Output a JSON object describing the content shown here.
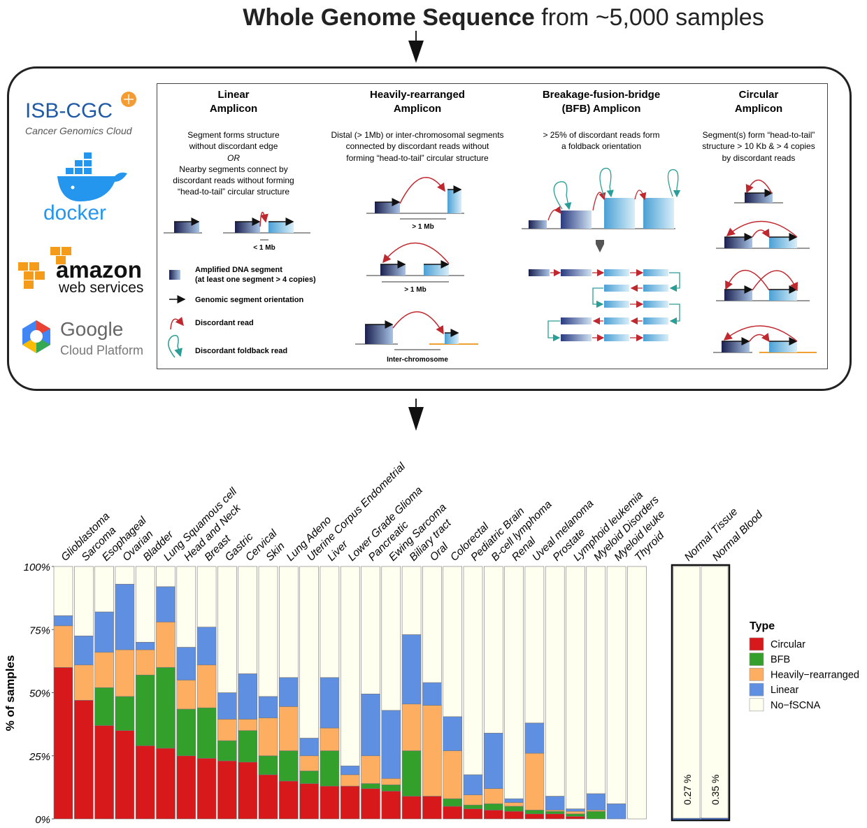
{
  "header": {
    "title_bold": "Whole Genome Sequence",
    "title_rest": " from ~5,000 samples"
  },
  "logos": {
    "isb_title": "ISB-CGC",
    "isb_subtitle": "Cancer Genomics Cloud",
    "docker": "docker",
    "amazon": "amazon",
    "aws": "web services",
    "google": "Google",
    "gcp": "Cloud Platform"
  },
  "colors": {
    "circular": "#d7191c",
    "bfb": "#33a02c",
    "heavily": "#fdae61",
    "linear": "#5f8fe0",
    "none": "#fffff0",
    "segment_dark": "#1a1f4e",
    "segment_light": "#6cc3e0",
    "discordant_read": "#c0282f",
    "foldback_read": "#2a9d96",
    "chromosome_orange": "#f0a030"
  },
  "diagram": {
    "panels": [
      {
        "title1": "Linear",
        "title2": "Amplicon",
        "desc": [
          "Segment forms structure",
          "without discordant edge",
          "OR",
          "Nearby segments connect by",
          "discordant reads without forming",
          "“head-to-tail” circular structure"
        ],
        "scale": "< 1 Mb"
      },
      {
        "title1": "Heavily-rearranged",
        "title2": "Amplicon",
        "desc": [
          "Distal (> 1Mb) or inter-chromosomal segments",
          "connected by discordant reads without",
          "forming “head-to-tail” circular structure"
        ],
        "scale1": "> 1 Mb",
        "scale2": "> 1 Mb",
        "scale3": "Inter-chromosome"
      },
      {
        "title1": "Breakage-fusion-bridge",
        "title2": "(BFB) Amplicon",
        "desc": [
          "> 25% of discordant reads form",
          "a foldback orientation"
        ]
      },
      {
        "title1": "Circular",
        "title2": "Amplicon",
        "desc": [
          "Segment(s) form “head-to-tail”",
          "structure > 10 Kb & > 4 copies",
          "by discordant reads"
        ]
      }
    ],
    "legend": [
      {
        "label": "Amplified DNA segment",
        "label2": "(at least one segment > 4 copies)",
        "icon": "segment-icon"
      },
      {
        "label": "Genomic segment orientation",
        "icon": "arrow-icon"
      },
      {
        "label": "Discordant read",
        "icon": "discordant-read-icon"
      },
      {
        "label": "Discordant foldback read",
        "icon": "foldback-read-icon"
      }
    ]
  },
  "chart_data": {
    "type": "bar",
    "stacked": true,
    "ylabel": "% of samples",
    "ylim": [
      0,
      100
    ],
    "yticks": [
      "0%",
      "25%",
      "50%",
      "75%",
      "100%"
    ],
    "legend_title": "Type",
    "legend_position": "right",
    "series_names": [
      "Circular",
      "BFB",
      "Heavily−rearranged",
      "Linear",
      "No−fSCNA"
    ],
    "categories": [
      "Glioblastoma",
      "Sarcoma",
      "Esophageal",
      "Ovarian",
      "Bladder",
      "Lung Squamous cell",
      "Head and Neck",
      "Breast",
      "Gastric",
      "Cervical",
      "Skin",
      "Lung Adeno",
      "Uterine Corpus Endometrial",
      "Liver",
      "Lower Grade Glioma",
      "Pancreatic",
      "Ewing Sarcoma",
      "Biliary tract",
      "Oral",
      "Colorectal",
      "Pediatric Brain",
      "B-cell lymphoma",
      "Renal",
      "Uveal melanoma",
      "Prostate",
      "Lymphoid leukemia",
      "Myeloid Disorders",
      "Myeloid leuke",
      "Thyroid"
    ],
    "series": [
      {
        "name": "Circular",
        "values": [
          60,
          47,
          37,
          35,
          29,
          28,
          25,
          24,
          23,
          22.5,
          17.5,
          15,
          14,
          13,
          13,
          12,
          11,
          9,
          9,
          5,
          4,
          3.5,
          3,
          2,
          2,
          1,
          0,
          0,
          0
        ]
      },
      {
        "name": "BFB",
        "values": [
          0,
          0,
          15,
          13.5,
          28,
          32,
          18.5,
          20,
          8,
          12.5,
          7.5,
          12,
          5,
          14,
          0,
          2,
          2.5,
          18,
          0,
          3,
          1.5,
          2.5,
          2,
          1.5,
          1,
          1,
          3,
          0,
          0
        ]
      },
      {
        "name": "Heavily−rearranged",
        "values": [
          16.5,
          14,
          14,
          18.5,
          10,
          18,
          11.5,
          17,
          8.5,
          4.5,
          15,
          17.5,
          6,
          9,
          4.5,
          11,
          2.5,
          18.5,
          36,
          19,
          4,
          6,
          1.5,
          22.5,
          0.5,
          1,
          0.5,
          0,
          0
        ]
      },
      {
        "name": "Linear",
        "values": [
          4,
          11.5,
          16,
          26,
          3,
          14,
          13,
          15,
          10.5,
          18,
          8.5,
          11.5,
          7,
          20,
          3.5,
          24.5,
          27,
          27.5,
          9,
          13.5,
          8,
          22,
          1.5,
          12,
          5.5,
          1,
          6.5,
          6,
          0
        ]
      },
      {
        "name": "No−fSCNA",
        "values": [
          19.5,
          27.5,
          18,
          7,
          30,
          8,
          32,
          24,
          50,
          42.5,
          51.5,
          44,
          68,
          44,
          79,
          50.5,
          57,
          27,
          46,
          59.5,
          82.5,
          66,
          92,
          62,
          91,
          96,
          90,
          94,
          100
        ]
      }
    ],
    "normal_categories": [
      "Normal Tissue",
      "Normal Blood"
    ],
    "normal_series": [
      {
        "name": "Circular",
        "values": [
          0.27,
          0.35
        ]
      },
      {
        "name": "No−fSCNA",
        "values": [
          99.73,
          99.65
        ]
      }
    ],
    "normal_labels": [
      "0.27 %",
      "0.35 %"
    ]
  }
}
